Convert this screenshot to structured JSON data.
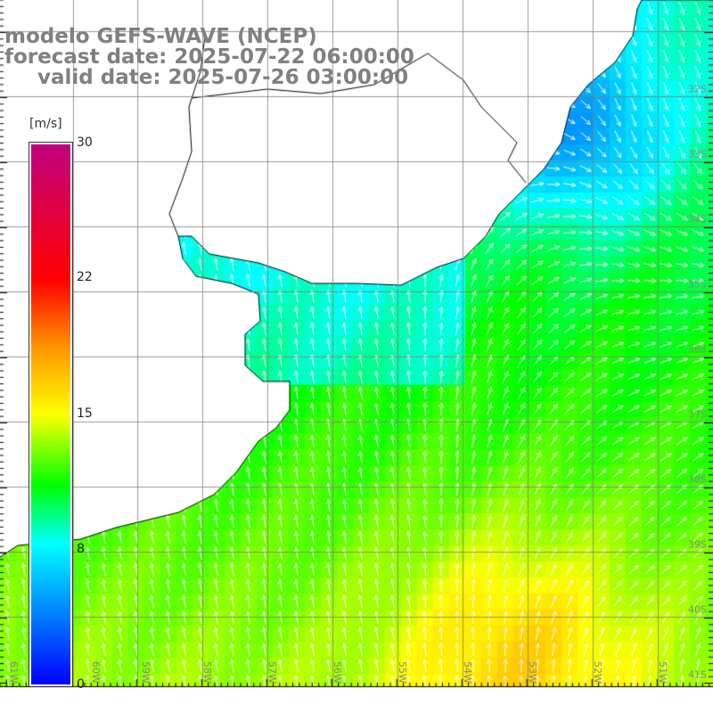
{
  "title": {
    "model": "modelo GEFS-WAVE (NCEP)",
    "forecast": "forecast date: 2025-07-22 06:00:00",
    "valid": "valid date: 2025-07-26 03:00:00"
  },
  "colorbar": {
    "unit": "[m/s]",
    "labels": [
      "30",
      "22",
      "15",
      "8",
      "0"
    ],
    "colors": [
      "#0000ff",
      "#00ffff",
      "#00ff00",
      "#ffff00",
      "#ff0000",
      "#c00080"
    ]
  },
  "axes": {
    "lon_labels": [
      "61W",
      "60W",
      "59W",
      "58W",
      "57W",
      "56W",
      "55W",
      "54W",
      "53W",
      "52W",
      "51W"
    ],
    "lat_labels": [
      "32S",
      "33S",
      "34S",
      "35S",
      "36S",
      "37S",
      "38S",
      "39S",
      "40S",
      "41S"
    ]
  }
}
